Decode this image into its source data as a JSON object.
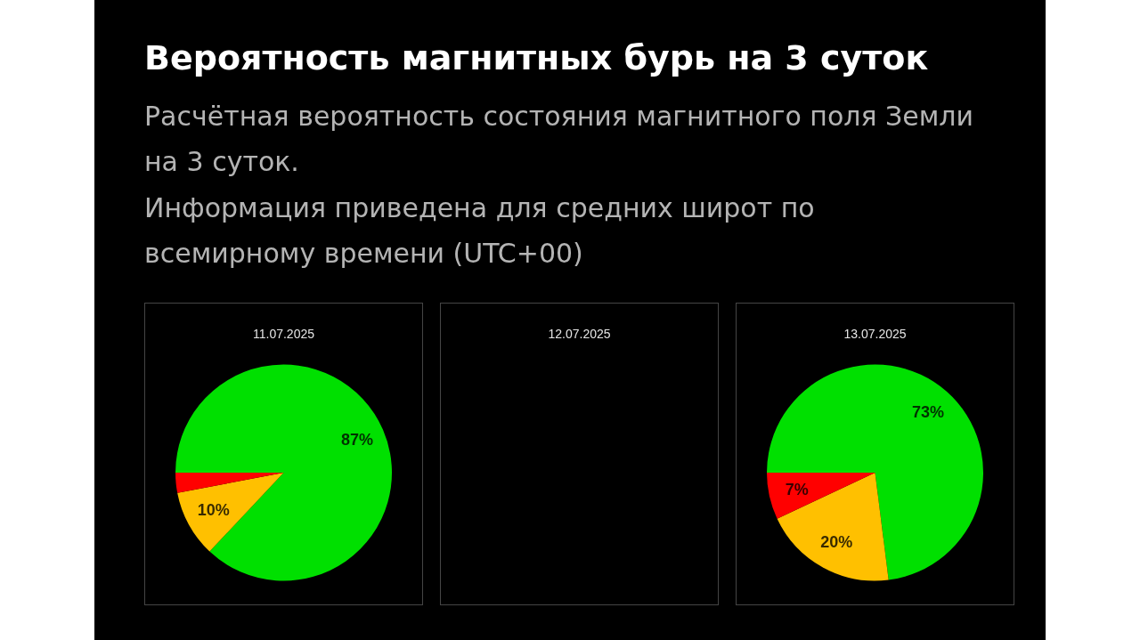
{
  "chart_data": [
    {
      "type": "other",
      "title": "Вероятность магнитных бурь на 3 суток",
      "subtitle": "Расчётная вероятность состояния магнитного поля Земли на 3 суток.",
      "annotations": [
        "Информация приведена для средних широт по всемирному времени (UTC+00)"
      ]
    },
    {
      "type": "pie",
      "title": "11.07.2025",
      "categories": [
        null,
        null,
        null
      ],
      "values": [
        87,
        10,
        3
      ],
      "colors": [
        "#00e000",
        "#ffc000",
        "#ff0000"
      ],
      "value_labels": [
        "87%",
        "10%",
        null
      ]
    },
    {
      "type": "other",
      "title": "12.07.2025"
    },
    {
      "type": "pie",
      "title": "13.07.2025",
      "categories": [
        null,
        null,
        null
      ],
      "values": [
        73,
        20,
        7
      ],
      "colors": [
        "#00e000",
        "#ffc000",
        "#ff0000"
      ],
      "value_labels": [
        "73%",
        "20%",
        "7%"
      ]
    }
  ]
}
